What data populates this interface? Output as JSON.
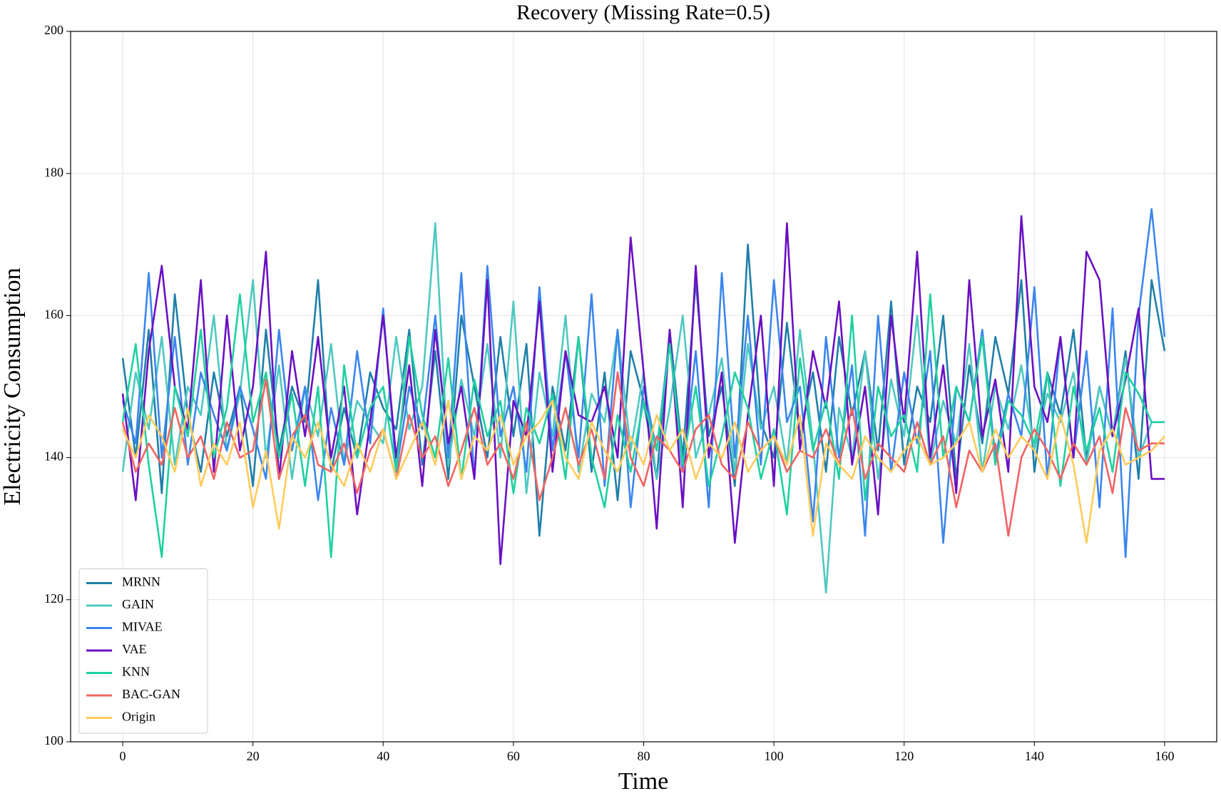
{
  "chart_data": {
    "type": "line",
    "title": "Recovery (Missing Rate=0.5)",
    "xlabel": "Time",
    "ylabel": "Electricity Consumption",
    "x": [
      0,
      2,
      4,
      6,
      8,
      10,
      12,
      14,
      16,
      18,
      20,
      22,
      24,
      26,
      28,
      30,
      32,
      34,
      36,
      38,
      40,
      42,
      44,
      46,
      48,
      50,
      52,
      54,
      56,
      58,
      60,
      62,
      64,
      66,
      68,
      70,
      72,
      74,
      76,
      78,
      80,
      82,
      84,
      86,
      88,
      90,
      92,
      94,
      96,
      98,
      100,
      102,
      104,
      106,
      108,
      110,
      112,
      114,
      116,
      118,
      120,
      122,
      124,
      126,
      128,
      130,
      132,
      134,
      136,
      138,
      140,
      142,
      144,
      146,
      148,
      150,
      152,
      154,
      156,
      158,
      160
    ],
    "xlim": [
      -8,
      168
    ],
    "xticks": [
      0,
      20,
      40,
      60,
      80,
      100,
      120,
      140,
      160
    ],
    "ylim": [
      100,
      200
    ],
    "yticks": [
      100,
      120,
      140,
      160,
      180,
      200
    ],
    "grid": true,
    "legend": "lower left",
    "series": [
      {
        "name": "MRNN",
        "color": "#1f7fa8",
        "values": [
          154,
          140,
          158,
          135,
          163,
          146,
          138,
          152,
          143,
          150,
          136,
          158,
          141,
          150,
          145,
          165,
          138,
          147,
          140,
          152,
          147,
          144,
          158,
          139,
          155,
          137,
          160,
          150,
          140,
          157,
          143,
          156,
          129,
          150,
          141,
          157,
          138,
          152,
          134,
          155,
          148,
          137,
          158,
          140,
          165,
          143,
          150,
          136,
          170,
          145,
          140,
          159,
          143,
          152,
          138,
          157,
          146,
          155,
          141,
          162,
          139,
          150,
          145,
          160,
          137,
          153,
          142,
          157,
          149,
          165,
          138,
          152,
          146,
          158,
          140,
          150,
          143,
          155,
          137,
          165,
          155
        ]
      },
      {
        "name": "GAIN",
        "color": "#4ec8c0",
        "values": [
          138,
          152,
          144,
          157,
          139,
          150,
          146,
          160,
          141,
          149,
          165,
          140,
          153,
          137,
          150,
          143,
          156,
          139,
          148,
          145,
          142,
          157,
          144,
          150,
          173,
          139,
          151,
          143,
          156,
          140,
          162,
          135,
          152,
          143,
          160,
          138,
          149,
          145,
          158,
          141,
          152,
          137,
          147,
          160,
          140,
          146,
          154,
          138,
          156,
          144,
          150,
          139,
          158,
          142,
          121,
          147,
          140,
          155,
          137,
          151,
          143,
          160,
          139,
          148,
          142,
          156,
          138,
          150,
          144,
          153,
          141,
          149,
          145,
          152,
          139,
          150,
          143,
          154,
          140,
          145,
          145
        ]
      },
      {
        "name": "MIVAE",
        "color": "#3a86ee",
        "values": [
          148,
          142,
          166,
          140,
          157,
          139,
          152,
          146,
          141,
          150,
          144,
          137,
          158,
          141,
          150,
          134,
          147,
          139,
          155,
          142,
          161,
          138,
          150,
          144,
          160,
          140,
          166,
          137,
          167,
          143,
          150,
          138,
          164,
          141,
          155,
          140,
          163,
          136,
          158,
          133,
          150,
          141,
          157,
          138,
          155,
          133,
          166,
          140,
          160,
          139,
          165,
          145,
          150,
          131,
          157,
          140,
          153,
          129,
          160,
          138,
          152,
          142,
          155,
          128,
          150,
          145,
          158,
          140,
          149,
          143,
          164,
          137,
          157,
          140,
          155,
          133,
          161,
          126,
          160,
          175,
          157
        ]
      },
      {
        "name": "VAE",
        "color": "#6a0fc2",
        "values": [
          149,
          134,
          155,
          167,
          150,
          144,
          165,
          138,
          160,
          141,
          150,
          169,
          137,
          155,
          143,
          157,
          140,
          150,
          132,
          145,
          160,
          140,
          153,
          136,
          158,
          142,
          150,
          137,
          165,
          125,
          148,
          143,
          162,
          138,
          155,
          146,
          145,
          150,
          140,
          171,
          152,
          130,
          158,
          133,
          167,
          140,
          152,
          128,
          146,
          160,
          136,
          173,
          141,
          155,
          147,
          162,
          139,
          150,
          132,
          160,
          145,
          169,
          140,
          153,
          135,
          165,
          143,
          151,
          138,
          174,
          150,
          145,
          157,
          140,
          169,
          165,
          143,
          151,
          161,
          137,
          137
        ]
      },
      {
        "name": "KNN",
        "color": "#1fd1a0",
        "values": [
          145,
          156,
          139,
          126,
          150,
          143,
          158,
          140,
          147,
          163,
          145,
          152,
          140,
          149,
          136,
          150,
          126,
          153,
          140,
          147,
          150,
          138,
          157,
          146,
          140,
          154,
          137,
          151,
          143,
          148,
          135,
          147,
          142,
          149,
          137,
          157,
          140,
          133,
          146,
          138,
          148,
          141,
          156,
          139,
          150,
          136,
          143,
          152,
          147,
          137,
          144,
          132,
          154,
          141,
          148,
          137,
          160,
          134,
          150,
          143,
          146,
          138,
          163,
          140,
          150,
          145,
          157,
          139,
          148,
          146,
          142,
          152,
          136,
          150,
          141,
          147,
          138,
          152,
          149,
          145,
          145
        ]
      },
      {
        "name": "BAC-GAN",
        "color": "#f26464",
        "values": [
          145,
          138,
          142,
          139,
          147,
          140,
          143,
          137,
          145,
          140,
          141,
          151,
          137,
          143,
          146,
          139,
          138,
          142,
          135,
          141,
          144,
          137,
          146,
          140,
          143,
          136,
          141,
          147,
          139,
          142,
          137,
          145,
          134,
          140,
          147,
          139,
          144,
          137,
          152,
          140,
          136,
          143,
          141,
          138,
          144,
          146,
          139,
          137,
          145,
          141,
          143,
          138,
          141,
          140,
          144,
          139,
          147,
          137,
          142,
          140,
          138,
          145,
          139,
          143,
          133,
          141,
          138,
          142,
          129,
          140,
          144,
          141,
          137,
          142,
          139,
          143,
          135,
          147,
          141,
          142,
          142
        ]
      },
      {
        "name": "Origin",
        "color": "#ffcc5c",
        "values": [
          144,
          140,
          146,
          143,
          138,
          147,
          136,
          142,
          139,
          145,
          133,
          141,
          130,
          143,
          140,
          145,
          139,
          136,
          142,
          138,
          144,
          137,
          141,
          145,
          139,
          148,
          137,
          143,
          141,
          146,
          139,
          143,
          145,
          148,
          140,
          137,
          145,
          141,
          138,
          143,
          139,
          146,
          141,
          144,
          137,
          142,
          140,
          145,
          138,
          141,
          143,
          139,
          146,
          129,
          142,
          139,
          137,
          143,
          140,
          138,
          141,
          143,
          139,
          140,
          142,
          145,
          138,
          144,
          140,
          143,
          141,
          137,
          146,
          139,
          128,
          141,
          144,
          139,
          140,
          141,
          143
        ]
      }
    ]
  }
}
